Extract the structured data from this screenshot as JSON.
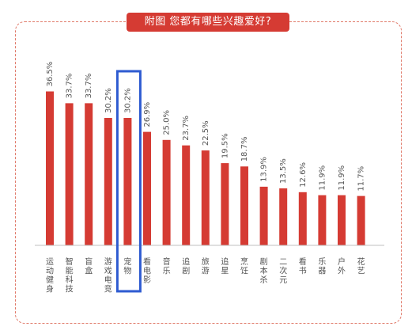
{
  "header": {
    "title": "附图  您都有哪些兴趣爱好?"
  },
  "colors": {
    "bar": "#d53b33",
    "highlight_box": "#2e5bd1",
    "frame_border": "#e07a6a",
    "text": "#555555"
  },
  "chart_data": {
    "type": "bar",
    "title": "附图  您都有哪些兴趣爱好?",
    "categories": [
      "运动健身",
      "智能科技",
      "盲盒",
      "游戏电竞",
      "宠物",
      "看电影",
      "音乐",
      "追剧",
      "旅游",
      "追星",
      "烹饪",
      "剧本杀",
      "二次元",
      "看书",
      "乐器",
      "户外",
      "花艺"
    ],
    "values": [
      36.5,
      33.7,
      33.7,
      30.2,
      30.2,
      26.9,
      25.0,
      23.7,
      22.5,
      19.5,
      18.7,
      13.9,
      13.5,
      12.6,
      11.9,
      11.9,
      11.7
    ],
    "value_labels": [
      "36.5%",
      "33.7%",
      "33.7%",
      "30.2%",
      "30.2%",
      "26.9%",
      "25.0%",
      "23.7%",
      "22.5%",
      "19.5%",
      "18.7%",
      "13.9%",
      "13.5%",
      "12.6%",
      "11.9%",
      "11.9%",
      "11.7%"
    ],
    "unit": "%",
    "highlighted_category": "宠物",
    "ylim": [
      0,
      44
    ],
    "grid": false,
    "legend": "none"
  }
}
